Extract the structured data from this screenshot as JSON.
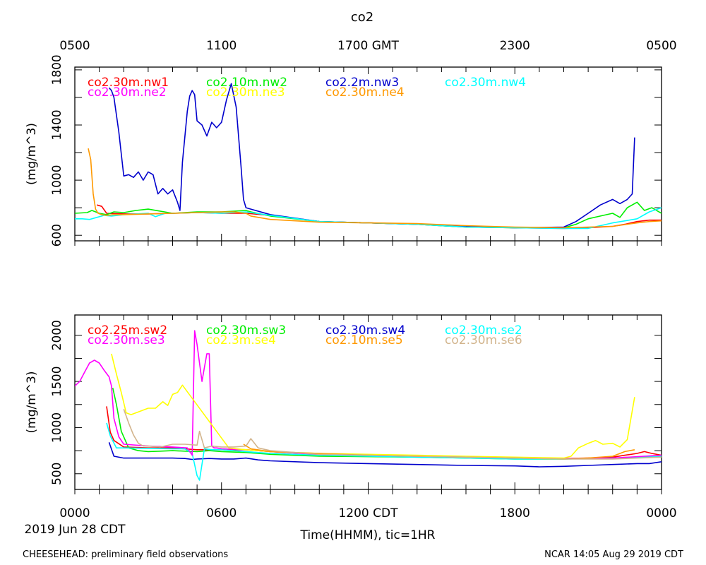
{
  "figure": {
    "title": "co2",
    "top_axis_ticks": [
      "0500",
      "1100",
      "1700 GMT",
      "2300",
      "0500"
    ],
    "bottom_axis_ticks": [
      "0000",
      "0600",
      "1200 CDT",
      "1800",
      "0000"
    ],
    "date_label": "2019 Jun 28 CDT",
    "xlabel": "Time(HHMM), tic=1HR",
    "footer_left": "CHEESEHEAD: preliminary field observations",
    "footer_right": "NCAR 14:05 Aug 29 2019 CDT"
  },
  "chart_data": [
    {
      "type": "line",
      "ylabel": "(mg/m^3)",
      "ylim": [
        560,
        1820
      ],
      "yticks": [
        600,
        1000,
        1400,
        1800
      ],
      "xlim": [
        0,
        24
      ],
      "grid": false,
      "series": [
        {
          "name": "co2.30m.nw1",
          "color": "#ff0000",
          "x": [
            0.9,
            1.1,
            1.3,
            2,
            3,
            4,
            5,
            6,
            7,
            8,
            10,
            12,
            14,
            16,
            18,
            20,
            21,
            22,
            22.5,
            23,
            23.5,
            24
          ],
          "y": [
            820,
            810,
            760,
            755,
            755,
            760,
            765,
            760,
            760,
            745,
            700,
            690,
            680,
            660,
            655,
            650,
            655,
            665,
            680,
            700,
            710,
            710
          ]
        },
        {
          "name": "co2.10m.nw2",
          "color": "#00ee00",
          "x": [
            0,
            0.5,
            0.7,
            1,
            1.3,
            1.6,
            2,
            2.5,
            3,
            4,
            5,
            6,
            6.5,
            7,
            7.2,
            8,
            10,
            12,
            14,
            16,
            18,
            20,
            20.5,
            21,
            21.5,
            22,
            22.3,
            22.6,
            23,
            23.3,
            23.6,
            24
          ],
          "y": [
            760,
            765,
            780,
            760,
            750,
            770,
            765,
            780,
            790,
            760,
            770,
            770,
            775,
            780,
            770,
            740,
            700,
            690,
            680,
            660,
            655,
            655,
            680,
            720,
            740,
            760,
            730,
            800,
            840,
            780,
            800,
            760
          ]
        },
        {
          "name": "co2.2m.nw3",
          "color": "#0000cc",
          "x": [
            1.4,
            1.5,
            1.6,
            1.8,
            2,
            2.2,
            2.4,
            2.6,
            2.8,
            3,
            3.2,
            3.4,
            3.6,
            3.8,
            4,
            4.2,
            4.3,
            4.4,
            4.6,
            4.7,
            4.8,
            4.9,
            5,
            5.2,
            5.4,
            5.6,
            5.8,
            6,
            6.2,
            6.4,
            6.6,
            6.8,
            6.9,
            7,
            7.2,
            8,
            10,
            12,
            14,
            16,
            18,
            20,
            20.5,
            21,
            21.5,
            22,
            22.3,
            22.6,
            22.8,
            22.9
          ],
          "y": [
            1670,
            1650,
            1600,
            1350,
            1030,
            1040,
            1020,
            1060,
            1000,
            1060,
            1040,
            900,
            940,
            900,
            930,
            840,
            780,
            1130,
            1500,
            1610,
            1650,
            1620,
            1430,
            1400,
            1320,
            1420,
            1380,
            1420,
            1580,
            1700,
            1530,
            1100,
            860,
            800,
            790,
            750,
            700,
            690,
            680,
            665,
            655,
            660,
            700,
            760,
            820,
            860,
            830,
            860,
            900,
            1310
          ]
        },
        {
          "name": "co2.30m.nw4",
          "color": "#00ffff",
          "x": [
            0,
            0.3,
            0.6,
            0.9,
            1.2,
            1.5,
            2,
            2.5,
            3,
            3.3,
            3.7,
            4,
            5,
            6,
            7,
            8,
            10,
            12,
            14,
            16,
            18,
            20,
            21,
            22,
            23,
            23.5,
            24
          ],
          "y": [
            720,
            720,
            715,
            730,
            745,
            740,
            750,
            755,
            760,
            735,
            760,
            760,
            765,
            760,
            770,
            745,
            700,
            690,
            680,
            660,
            655,
            650,
            650,
            690,
            720,
            770,
            800
          ]
        },
        {
          "name": "co2.30m.ne2",
          "color": "#ff00ff",
          "x": [],
          "y": []
        },
        {
          "name": "co2.30m.ne3",
          "color": "#ffff00",
          "x": [],
          "y": []
        },
        {
          "name": "co2.30m.ne4",
          "color": "#ff9900",
          "x": [
            0.55,
            0.65,
            0.75,
            0.85,
            0.95,
            1.1,
            1.3,
            1.6,
            2,
            3,
            4,
            5,
            6,
            6.5,
            7,
            7.2,
            8,
            10,
            12,
            14,
            16,
            18,
            20,
            21,
            22,
            23,
            23.5,
            24
          ],
          "y": [
            1230,
            1150,
            900,
            790,
            760,
            750,
            745,
            750,
            750,
            755,
            760,
            765,
            770,
            770,
            760,
            740,
            715,
            695,
            690,
            685,
            670,
            660,
            655,
            660,
            665,
            690,
            700,
            705
          ]
        }
      ]
    },
    {
      "type": "line",
      "ylabel": "(mg/m^3)",
      "ylim": [
        330,
        2220
      ],
      "yticks": [
        500,
        1000,
        1500,
        2000
      ],
      "xlim": [
        0,
        24
      ],
      "grid": false,
      "series": [
        {
          "name": "co2.25m.sw2",
          "color": "#ff0000",
          "x": [
            1.3,
            1.45,
            1.6,
            2,
            3,
            4,
            5,
            6,
            7,
            8,
            10,
            12,
            14,
            16,
            18,
            20,
            21,
            22,
            22.5,
            23,
            23.3,
            23.6,
            24
          ],
          "y": [
            1230,
            950,
            860,
            790,
            780,
            780,
            760,
            760,
            760,
            740,
            710,
            700,
            690,
            680,
            670,
            665,
            670,
            680,
            700,
            720,
            740,
            720,
            700
          ]
        },
        {
          "name": "co2.30m.sw3",
          "color": "#00ee00",
          "x": [
            1.55,
            1.7,
            1.9,
            2.2,
            2.6,
            3,
            3.5,
            4,
            4.5,
            5,
            5.5,
            6,
            7,
            8,
            10,
            12,
            14,
            16,
            18,
            20,
            22,
            24
          ],
          "y": [
            1430,
            1250,
            960,
            780,
            750,
            740,
            745,
            750,
            745,
            740,
            750,
            740,
            730,
            710,
            690,
            685,
            680,
            670,
            660,
            660,
            670,
            690
          ]
        },
        {
          "name": "co2.30m.sw4",
          "color": "#0000cc",
          "x": [
            1.4,
            1.6,
            2,
            3,
            4,
            4.5,
            4.8,
            5,
            5.5,
            6,
            6.5,
            7,
            7.5,
            8,
            10,
            12,
            14,
            16,
            18,
            19,
            20,
            21,
            22,
            23,
            23.5,
            24
          ],
          "y": [
            840,
            690,
            670,
            670,
            670,
            665,
            655,
            660,
            665,
            660,
            660,
            670,
            650,
            640,
            620,
            610,
            600,
            590,
            585,
            575,
            580,
            590,
            600,
            610,
            610,
            630
          ]
        },
        {
          "name": "co2.30m.se2",
          "color": "#00ffff",
          "x": [
            1.3,
            1.45,
            1.7,
            2,
            3,
            4,
            4.5,
            4.8,
            5,
            5.1,
            5.3,
            5.6,
            6,
            7,
            8,
            10,
            12,
            14,
            16,
            18,
            20,
            22,
            24
          ],
          "y": [
            1050,
            910,
            780,
            780,
            775,
            770,
            770,
            720,
            480,
            430,
            770,
            760,
            760,
            740,
            720,
            700,
            690,
            680,
            670,
            660,
            660,
            670,
            690
          ]
        },
        {
          "name": "co2.30m.se3",
          "color": "#ff00ff",
          "x": [
            0,
            0.2,
            0.4,
            0.6,
            0.8,
            1.0,
            1.2,
            1.4,
            1.5,
            1.6,
            1.8,
            2,
            3,
            4,
            4.6,
            4.8,
            4.9,
            5.0,
            5.1,
            5.2,
            5.3,
            5.4,
            5.5,
            5.6,
            5.7,
            5.8,
            6,
            7,
            8,
            10,
            12,
            14,
            16,
            18,
            20,
            22,
            24
          ],
          "y": [
            1450,
            1500,
            1600,
            1700,
            1730,
            1700,
            1620,
            1550,
            1450,
            1100,
            900,
            820,
            800,
            790,
            780,
            700,
            2050,
            1900,
            1700,
            1500,
            1650,
            1800,
            1800,
            800,
            780,
            780,
            770,
            760,
            740,
            710,
            700,
            690,
            680,
            670,
            665,
            670,
            700
          ]
        },
        {
          "name": "co2.3m.se4",
          "color": "#ffff00",
          "x": [
            1.5,
            1.7,
            1.9,
            2.1,
            2.3,
            2.6,
            3,
            3.3,
            3.6,
            3.8,
            4.0,
            4.2,
            4.4,
            6.3,
            6.6,
            7,
            8,
            10,
            12,
            14,
            16,
            18,
            20,
            20.3,
            20.6,
            21,
            21.3,
            21.6,
            22,
            22.3,
            22.6,
            22.8,
            22.9
          ],
          "y": [
            1800,
            1580,
            1380,
            1160,
            1140,
            1170,
            1210,
            1210,
            1280,
            1240,
            1360,
            1380,
            1460,
            780,
            770,
            760,
            740,
            720,
            710,
            700,
            690,
            680,
            670,
            690,
            780,
            830,
            860,
            820,
            830,
            790,
            870,
            1180,
            1330
          ]
        },
        {
          "name": "co2.10m.se5",
          "color": "#ff9900",
          "x": [
            6.9,
            7.2,
            8,
            10,
            12,
            14,
            16,
            18,
            20,
            21,
            22,
            22.5,
            22.9
          ],
          "y": [
            820,
            770,
            740,
            720,
            700,
            690,
            680,
            670,
            660,
            670,
            690,
            740,
            760
          ]
        },
        {
          "name": "co2.30m.se6",
          "color": "#d2b48c",
          "x": [
            2.0,
            2.2,
            2.4,
            2.6,
            2.8,
            3,
            3.5,
            4,
            4.5,
            5.0,
            5.1,
            5.3,
            5.6,
            6,
            6.5,
            7,
            7.2,
            7.5,
            8,
            10,
            12,
            14,
            16,
            18,
            20,
            22,
            24
          ],
          "y": [
            1200,
            1050,
            920,
            830,
            800,
            800,
            790,
            820,
            820,
            810,
            960,
            780,
            800,
            790,
            790,
            800,
            880,
            780,
            750,
            710,
            700,
            690,
            680,
            670,
            660,
            660,
            680
          ]
        }
      ]
    }
  ]
}
